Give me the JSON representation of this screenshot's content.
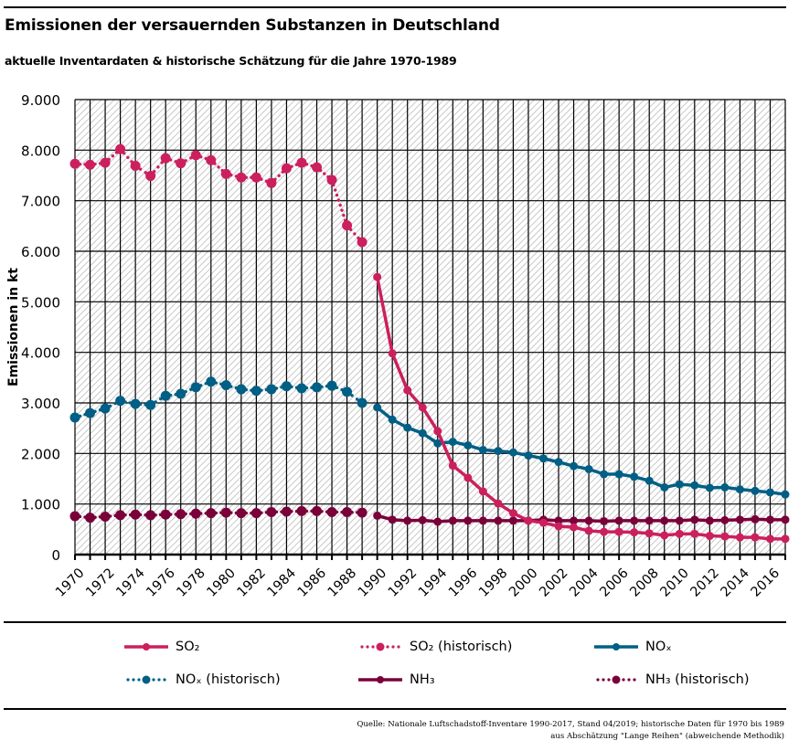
{
  "header": {
    "title": "Emissionen der versauernden Substanzen in Deutschland",
    "subtitle": "aktuelle Inventardaten & historische Schätzung für die Jahre 1970-1989"
  },
  "colors": {
    "so2": "#cc1f5d",
    "nox": "#005f85",
    "nh3": "#7a0039"
  },
  "chart_data": {
    "type": "line",
    "title": "Emissionen der versauernden Substanzen in Deutschland",
    "subtitle": "aktuelle Inventardaten & historische Schätzung für die Jahre 1970-1989",
    "xlabel": "",
    "ylabel": "Emissionen in kt",
    "xlim": [
      1970,
      2017
    ],
    "ylim": [
      0,
      9000
    ],
    "yticks": [
      0,
      1000,
      2000,
      3000,
      4000,
      5000,
      6000,
      7000,
      8000,
      9000
    ],
    "ytick_labels": [
      "0",
      "1.000",
      "2.000",
      "3.000",
      "4.000",
      "5.000",
      "6.000",
      "7.000",
      "8.000",
      "9.000"
    ],
    "xtick_labels": [
      "1970",
      "1972",
      "1974",
      "1976",
      "1978",
      "1980",
      "1982",
      "1984",
      "1986",
      "1988",
      "1990",
      "1992",
      "1994",
      "1996",
      "1998",
      "2000",
      "2002",
      "2004",
      "2006",
      "2008",
      "2010",
      "2012",
      "2014",
      "2016"
    ],
    "grid": true,
    "background": "hatched",
    "legend_position": "bottom",
    "series": [
      {
        "key": "so2_hist",
        "name": "SO₂ (historisch)",
        "style": "dotted",
        "color": "#cc1f5d",
        "x": [
          1970,
          1971,
          1972,
          1973,
          1974,
          1975,
          1976,
          1977,
          1978,
          1979,
          1980,
          1981,
          1982,
          1983,
          1984,
          1985,
          1986,
          1987,
          1988,
          1989
        ],
        "values": [
          7730,
          7710,
          7750,
          8020,
          7690,
          7490,
          7840,
          7740,
          7900,
          7800,
          7530,
          7460,
          7460,
          7350,
          7640,
          7750,
          7660,
          7410,
          6510,
          6180
        ]
      },
      {
        "key": "so2",
        "name": "SO₂",
        "style": "solid",
        "color": "#cc1f5d",
        "x": [
          1990,
          1991,
          1992,
          1993,
          1994,
          1995,
          1996,
          1997,
          1998,
          1999,
          2000,
          2001,
          2002,
          2003,
          2004,
          2005,
          2006,
          2007,
          2008,
          2009,
          2010,
          2011,
          2012,
          2013,
          2014,
          2015,
          2016,
          2017
        ],
        "values": [
          5490,
          3980,
          3250,
          2910,
          2440,
          1760,
          1520,
          1250,
          1010,
          820,
          670,
          630,
          560,
          540,
          470,
          450,
          450,
          440,
          420,
          380,
          410,
          410,
          370,
          360,
          340,
          340,
          310,
          310
        ]
      },
      {
        "key": "nox_hist",
        "name": "NOₓ (historisch)",
        "style": "dotted",
        "color": "#005f85",
        "x": [
          1970,
          1971,
          1972,
          1973,
          1974,
          1975,
          1976,
          1977,
          1978,
          1979,
          1980,
          1981,
          1982,
          1983,
          1984,
          1985,
          1986,
          1987,
          1988,
          1989
        ],
        "values": [
          2710,
          2800,
          2890,
          3040,
          2980,
          2960,
          3140,
          3180,
          3310,
          3420,
          3350,
          3270,
          3240,
          3270,
          3330,
          3290,
          3310,
          3340,
          3220,
          3000
        ]
      },
      {
        "key": "nox",
        "name": "NOₓ",
        "style": "solid",
        "color": "#005f85",
        "x": [
          1990,
          1991,
          1992,
          1993,
          1994,
          1995,
          1996,
          1997,
          1998,
          1999,
          2000,
          2001,
          2002,
          2003,
          2004,
          2005,
          2006,
          2007,
          2008,
          2009,
          2010,
          2011,
          2012,
          2013,
          2014,
          2015,
          2016,
          2017
        ],
        "values": [
          2910,
          2670,
          2510,
          2400,
          2200,
          2230,
          2160,
          2070,
          2050,
          2020,
          1960,
          1900,
          1830,
          1750,
          1690,
          1590,
          1590,
          1540,
          1460,
          1330,
          1390,
          1370,
          1320,
          1330,
          1290,
          1260,
          1230,
          1190
        ]
      },
      {
        "key": "nh3_hist",
        "name": "NH₃ (historisch)",
        "style": "dotted",
        "color": "#7a0039",
        "x": [
          1970,
          1971,
          1972,
          1973,
          1974,
          1975,
          1976,
          1977,
          1978,
          1979,
          1980,
          1981,
          1982,
          1983,
          1984,
          1985,
          1986,
          1987,
          1988,
          1989
        ],
        "values": [
          760,
          730,
          750,
          780,
          790,
          780,
          790,
          800,
          810,
          820,
          830,
          820,
          820,
          840,
          850,
          860,
          860,
          840,
          840,
          830
        ]
      },
      {
        "key": "nh3",
        "name": "NH₃",
        "style": "solid",
        "color": "#7a0039",
        "x": [
          1990,
          1991,
          1992,
          1993,
          1994,
          1995,
          1996,
          1997,
          1998,
          1999,
          2000,
          2001,
          2002,
          2003,
          2004,
          2005,
          2006,
          2007,
          2008,
          2009,
          2010,
          2011,
          2012,
          2013,
          2014,
          2015,
          2016,
          2017
        ],
        "values": [
          770,
          690,
          670,
          680,
          650,
          670,
          670,
          670,
          670,
          670,
          670,
          690,
          670,
          670,
          670,
          660,
          670,
          670,
          670,
          670,
          670,
          690,
          670,
          680,
          690,
          700,
          690,
          690
        ]
      }
    ]
  },
  "legend": {
    "items": [
      {
        "label": "SO₂",
        "series": "so2"
      },
      {
        "label": "SO₂ (historisch)",
        "series": "so2_hist"
      },
      {
        "label": "NOₓ",
        "series": "nox"
      },
      {
        "label": "NOₓ (historisch)",
        "series": "nox_hist"
      },
      {
        "label": "NH₃",
        "series": "nh3"
      },
      {
        "label": "NH₃ (historisch)",
        "series": "nh3_hist"
      }
    ]
  },
  "source": {
    "line1": "Quelle: Nationale Luftschadstoff-Inventare 1990-2017, Stand 04/2019; historische Daten für 1970 bis 1989",
    "line2": "aus Abschätzung \"Lange Reihen\" (abweichende Methodik)"
  }
}
